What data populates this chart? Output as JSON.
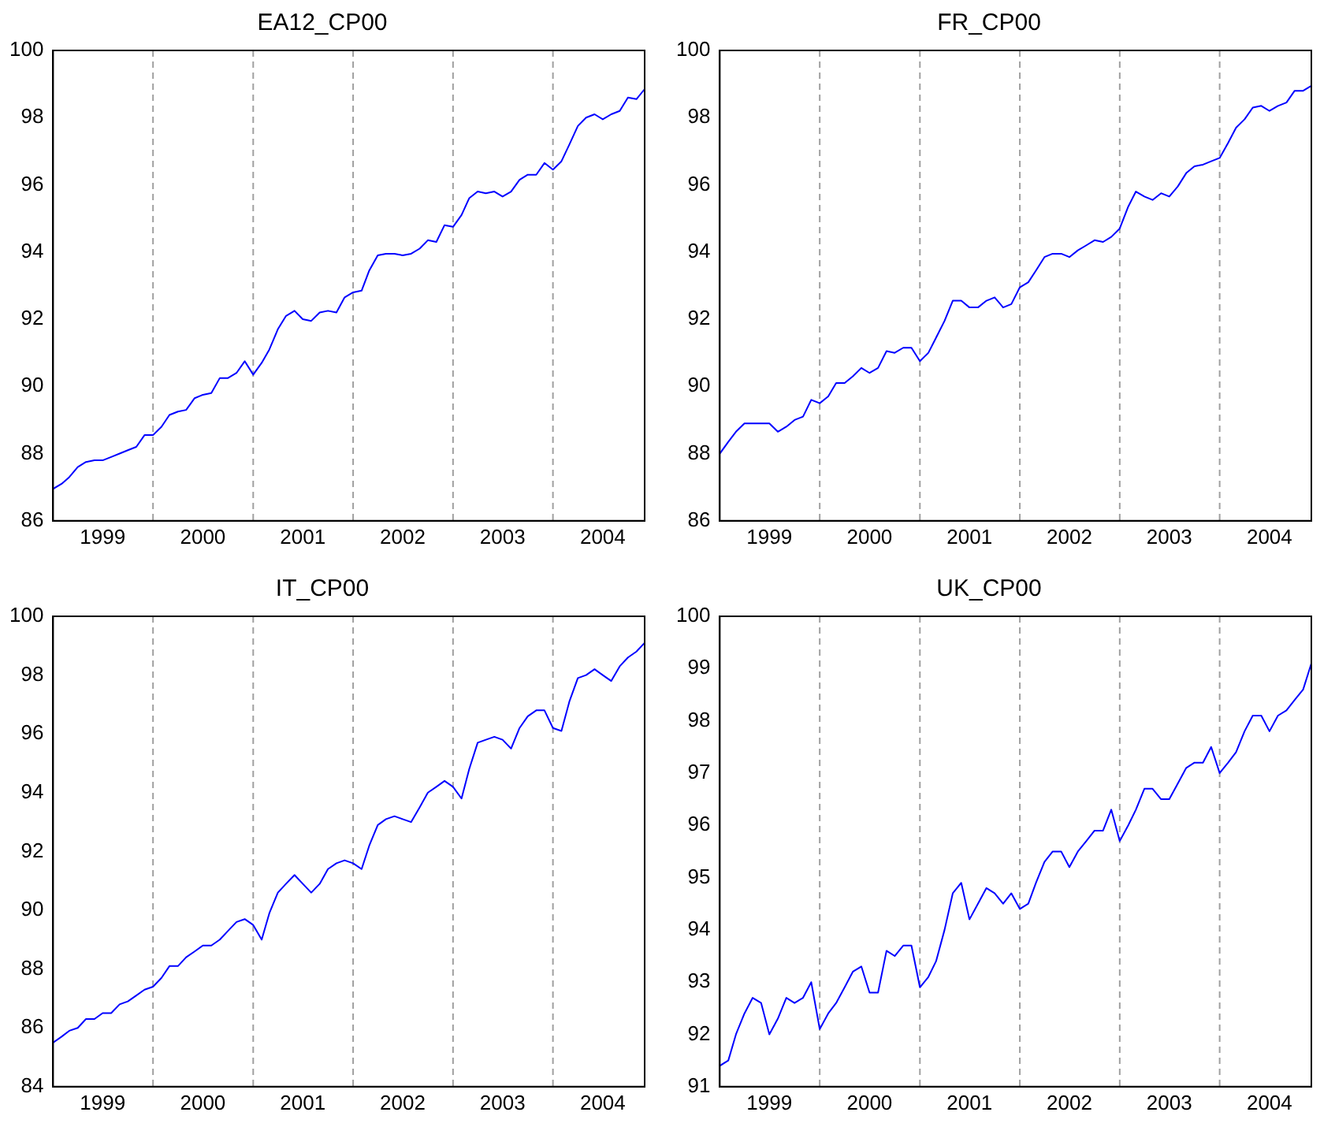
{
  "chart_data": [
    {
      "type": "line",
      "title": "EA12_CP00",
      "x": [
        "1999-01",
        "1999-02",
        "1999-03",
        "1999-04",
        "1999-05",
        "1999-06",
        "1999-07",
        "1999-08",
        "1999-09",
        "1999-10",
        "1999-11",
        "1999-12",
        "2000-01",
        "2000-02",
        "2000-03",
        "2000-04",
        "2000-05",
        "2000-06",
        "2000-07",
        "2000-08",
        "2000-09",
        "2000-10",
        "2000-11",
        "2000-12",
        "2001-01",
        "2001-02",
        "2001-03",
        "2001-04",
        "2001-05",
        "2001-06",
        "2001-07",
        "2001-08",
        "2001-09",
        "2001-10",
        "2001-11",
        "2001-12",
        "2002-01",
        "2002-02",
        "2002-03",
        "2002-04",
        "2002-05",
        "2002-06",
        "2002-07",
        "2002-08",
        "2002-09",
        "2002-10",
        "2002-11",
        "2002-12",
        "2003-01",
        "2003-02",
        "2003-03",
        "2003-04",
        "2003-05",
        "2003-06",
        "2003-07",
        "2003-08",
        "2003-09",
        "2003-10",
        "2003-11",
        "2003-12",
        "2004-01",
        "2004-02",
        "2004-03",
        "2004-04",
        "2004-05",
        "2004-06",
        "2004-07",
        "2004-08",
        "2004-09",
        "2004-10",
        "2004-11",
        "2004-12"
      ],
      "series": [
        {
          "color": "#0000ff",
          "values": [
            86.95,
            87.1,
            87.3,
            87.6,
            87.75,
            87.8,
            87.8,
            87.9,
            88.0,
            88.1,
            88.2,
            88.55,
            88.55,
            88.8,
            89.15,
            89.25,
            89.3,
            89.65,
            89.75,
            89.8,
            90.25,
            90.25,
            90.4,
            90.75,
            90.35,
            90.7,
            91.1,
            91.7,
            92.1,
            92.25,
            92.0,
            91.95,
            92.2,
            92.25,
            92.2,
            92.65,
            92.8,
            92.85,
            93.45,
            93.9,
            93.95,
            93.95,
            93.9,
            93.95,
            94.1,
            94.35,
            94.3,
            94.8,
            94.75,
            95.1,
            95.6,
            95.8,
            95.75,
            95.8,
            95.65,
            95.8,
            96.15,
            96.3,
            96.3,
            96.65,
            96.45,
            96.7,
            97.2,
            97.75,
            98.0,
            98.1,
            97.95,
            98.1,
            98.2,
            98.6,
            98.55,
            98.85
          ]
        }
      ],
      "xlim": [
        "1999-01",
        "2004-12"
      ],
      "xticks": [
        {
          "value": "1999-07",
          "label": "1999"
        },
        {
          "value": "2000-07",
          "label": "2000"
        },
        {
          "value": "2001-07",
          "label": "2001"
        },
        {
          "value": "2002-07",
          "label": "2002"
        },
        {
          "value": "2003-07",
          "label": "2003"
        },
        {
          "value": "2004-07",
          "label": "2004"
        }
      ],
      "ylim": [
        86,
        100
      ],
      "yticks": [
        86,
        88,
        90,
        92,
        94,
        96,
        98,
        100
      ],
      "grid": false,
      "legend": false,
      "line_style": "solid",
      "marker": "none",
      "ref_lines": [
        {
          "axis": "x",
          "value": "2000-01",
          "color": "#a0a0a0",
          "line_style": "dashed"
        },
        {
          "axis": "x",
          "value": "2001-01",
          "color": "#a0a0a0",
          "line_style": "dashed"
        },
        {
          "axis": "x",
          "value": "2002-01",
          "color": "#a0a0a0",
          "line_style": "dashed"
        },
        {
          "axis": "x",
          "value": "2003-01",
          "color": "#a0a0a0",
          "line_style": "dashed"
        },
        {
          "axis": "x",
          "value": "2004-01",
          "color": "#a0a0a0",
          "line_style": "dashed"
        }
      ]
    },
    {
      "type": "line",
      "title": "FR_CP00",
      "x": [
        "1999-01",
        "1999-02",
        "1999-03",
        "1999-04",
        "1999-05",
        "1999-06",
        "1999-07",
        "1999-08",
        "1999-09",
        "1999-10",
        "1999-11",
        "1999-12",
        "2000-01",
        "2000-02",
        "2000-03",
        "2000-04",
        "2000-05",
        "2000-06",
        "2000-07",
        "2000-08",
        "2000-09",
        "2000-10",
        "2000-11",
        "2000-12",
        "2001-01",
        "2001-02",
        "2001-03",
        "2001-04",
        "2001-05",
        "2001-06",
        "2001-07",
        "2001-08",
        "2001-09",
        "2001-10",
        "2001-11",
        "2001-12",
        "2002-01",
        "2002-02",
        "2002-03",
        "2002-04",
        "2002-05",
        "2002-06",
        "2002-07",
        "2002-08",
        "2002-09",
        "2002-10",
        "2002-11",
        "2002-12",
        "2003-01",
        "2003-02",
        "2003-03",
        "2003-04",
        "2003-05",
        "2003-06",
        "2003-07",
        "2003-08",
        "2003-09",
        "2003-10",
        "2003-11",
        "2003-12",
        "2004-01",
        "2004-02",
        "2004-03",
        "2004-04",
        "2004-05",
        "2004-06",
        "2004-07",
        "2004-08",
        "2004-09",
        "2004-10",
        "2004-11",
        "2004-12"
      ],
      "series": [
        {
          "color": "#0000ff",
          "values": [
            88.0,
            88.35,
            88.65,
            88.9,
            88.9,
            88.9,
            88.9,
            88.65,
            88.8,
            89.0,
            89.1,
            89.6,
            89.5,
            89.7,
            90.1,
            90.1,
            90.3,
            90.55,
            90.4,
            90.55,
            91.05,
            91.0,
            91.15,
            91.15,
            90.75,
            91.0,
            91.45,
            91.95,
            92.55,
            92.55,
            92.35,
            92.35,
            92.55,
            92.65,
            92.35,
            92.45,
            92.95,
            93.1,
            93.45,
            93.85,
            93.95,
            93.95,
            93.85,
            94.05,
            94.2,
            94.35,
            94.3,
            94.45,
            94.7,
            95.35,
            95.8,
            95.65,
            95.55,
            95.75,
            95.65,
            95.95,
            96.35,
            96.55,
            96.6,
            96.7,
            96.8,
            97.25,
            97.7,
            97.95,
            98.3,
            98.35,
            98.2,
            98.35,
            98.45,
            98.8,
            98.8,
            98.95
          ]
        }
      ],
      "xlim": [
        "1999-01",
        "2004-12"
      ],
      "xticks": [
        {
          "value": "1999-07",
          "label": "1999"
        },
        {
          "value": "2000-07",
          "label": "2000"
        },
        {
          "value": "2001-07",
          "label": "2001"
        },
        {
          "value": "2002-07",
          "label": "2002"
        },
        {
          "value": "2003-07",
          "label": "2003"
        },
        {
          "value": "2004-07",
          "label": "2004"
        }
      ],
      "ylim": [
        86,
        100
      ],
      "yticks": [
        86,
        88,
        90,
        92,
        94,
        96,
        98,
        100
      ],
      "grid": false,
      "legend": false,
      "line_style": "solid",
      "marker": "none",
      "ref_lines": [
        {
          "axis": "x",
          "value": "2000-01",
          "color": "#a0a0a0",
          "line_style": "dashed"
        },
        {
          "axis": "x",
          "value": "2001-01",
          "color": "#a0a0a0",
          "line_style": "dashed"
        },
        {
          "axis": "x",
          "value": "2002-01",
          "color": "#a0a0a0",
          "line_style": "dashed"
        },
        {
          "axis": "x",
          "value": "2003-01",
          "color": "#a0a0a0",
          "line_style": "dashed"
        },
        {
          "axis": "x",
          "value": "2004-01",
          "color": "#a0a0a0",
          "line_style": "dashed"
        }
      ]
    },
    {
      "type": "line",
      "title": "IT_CP00",
      "x": [
        "1999-01",
        "1999-02",
        "1999-03",
        "1999-04",
        "1999-05",
        "1999-06",
        "1999-07",
        "1999-08",
        "1999-09",
        "1999-10",
        "1999-11",
        "1999-12",
        "2000-01",
        "2000-02",
        "2000-03",
        "2000-04",
        "2000-05",
        "2000-06",
        "2000-07",
        "2000-08",
        "2000-09",
        "2000-10",
        "2000-11",
        "2000-12",
        "2001-01",
        "2001-02",
        "2001-03",
        "2001-04",
        "2001-05",
        "2001-06",
        "2001-07",
        "2001-08",
        "2001-09",
        "2001-10",
        "2001-11",
        "2001-12",
        "2002-01",
        "2002-02",
        "2002-03",
        "2002-04",
        "2002-05",
        "2002-06",
        "2002-07",
        "2002-08",
        "2002-09",
        "2002-10",
        "2002-11",
        "2002-12",
        "2003-01",
        "2003-02",
        "2003-03",
        "2003-04",
        "2003-05",
        "2003-06",
        "2003-07",
        "2003-08",
        "2003-09",
        "2003-10",
        "2003-11",
        "2003-12",
        "2004-01",
        "2004-02",
        "2004-03",
        "2004-04",
        "2004-05",
        "2004-06",
        "2004-07",
        "2004-08",
        "2004-09",
        "2004-10",
        "2004-11",
        "2004-12"
      ],
      "series": [
        {
          "color": "#0000ff",
          "values": [
            85.5,
            85.7,
            85.9,
            86.0,
            86.3,
            86.3,
            86.5,
            86.5,
            86.8,
            86.9,
            87.1,
            87.3,
            87.4,
            87.7,
            88.1,
            88.1,
            88.4,
            88.6,
            88.8,
            88.8,
            89.0,
            89.3,
            89.6,
            89.7,
            89.5,
            89.0,
            89.9,
            90.6,
            90.9,
            91.2,
            90.9,
            90.6,
            90.9,
            91.4,
            91.6,
            91.7,
            91.6,
            91.4,
            92.2,
            92.9,
            93.1,
            93.2,
            93.1,
            93.0,
            93.5,
            94.0,
            94.2,
            94.4,
            94.2,
            93.8,
            94.8,
            95.7,
            95.8,
            95.9,
            95.8,
            95.5,
            96.2,
            96.6,
            96.8,
            96.8,
            96.2,
            96.1,
            97.1,
            97.9,
            98.0,
            98.2,
            98.0,
            97.8,
            98.3,
            98.6,
            98.8,
            99.1
          ]
        }
      ],
      "xlim": [
        "1999-01",
        "2004-12"
      ],
      "xticks": [
        {
          "value": "1999-07",
          "label": "1999"
        },
        {
          "value": "2000-07",
          "label": "2000"
        },
        {
          "value": "2001-07",
          "label": "2001"
        },
        {
          "value": "2002-07",
          "label": "2002"
        },
        {
          "value": "2003-07",
          "label": "2003"
        },
        {
          "value": "2004-07",
          "label": "2004"
        }
      ],
      "ylim": [
        84,
        100
      ],
      "yticks": [
        84,
        86,
        88,
        90,
        92,
        94,
        96,
        98,
        100
      ],
      "grid": false,
      "legend": false,
      "line_style": "solid",
      "marker": "none",
      "ref_lines": [
        {
          "axis": "x",
          "value": "2000-01",
          "color": "#a0a0a0",
          "line_style": "dashed"
        },
        {
          "axis": "x",
          "value": "2001-01",
          "color": "#a0a0a0",
          "line_style": "dashed"
        },
        {
          "axis": "x",
          "value": "2002-01",
          "color": "#a0a0a0",
          "line_style": "dashed"
        },
        {
          "axis": "x",
          "value": "2003-01",
          "color": "#a0a0a0",
          "line_style": "dashed"
        },
        {
          "axis": "x",
          "value": "2004-01",
          "color": "#a0a0a0",
          "line_style": "dashed"
        }
      ]
    },
    {
      "type": "line",
      "title": "UK_CP00",
      "x": [
        "1999-01",
        "1999-02",
        "1999-03",
        "1999-04",
        "1999-05",
        "1999-06",
        "1999-07",
        "1999-08",
        "1999-09",
        "1999-10",
        "1999-11",
        "1999-12",
        "2000-01",
        "2000-02",
        "2000-03",
        "2000-04",
        "2000-05",
        "2000-06",
        "2000-07",
        "2000-08",
        "2000-09",
        "2000-10",
        "2000-11",
        "2000-12",
        "2001-01",
        "2001-02",
        "2001-03",
        "2001-04",
        "2001-05",
        "2001-06",
        "2001-07",
        "2001-08",
        "2001-09",
        "2001-10",
        "2001-11",
        "2001-12",
        "2002-01",
        "2002-02",
        "2002-03",
        "2002-04",
        "2002-05",
        "2002-06",
        "2002-07",
        "2002-08",
        "2002-09",
        "2002-10",
        "2002-11",
        "2002-12",
        "2003-01",
        "2003-02",
        "2003-03",
        "2003-04",
        "2003-05",
        "2003-06",
        "2003-07",
        "2003-08",
        "2003-09",
        "2003-10",
        "2003-11",
        "2003-12",
        "2004-01",
        "2004-02",
        "2004-03",
        "2004-04",
        "2004-05",
        "2004-06",
        "2004-07",
        "2004-08",
        "2004-09",
        "2004-10",
        "2004-11",
        "2004-12"
      ],
      "series": [
        {
          "color": "#0000ff",
          "values": [
            91.4,
            91.5,
            92.0,
            92.4,
            92.7,
            92.6,
            92.0,
            92.3,
            92.7,
            92.6,
            92.7,
            93.0,
            92.1,
            92.4,
            92.6,
            92.9,
            93.2,
            93.3,
            92.8,
            92.8,
            93.6,
            93.5,
            93.7,
            93.7,
            92.9,
            93.1,
            93.4,
            94.0,
            94.7,
            94.9,
            94.2,
            94.5,
            94.8,
            94.7,
            94.5,
            94.7,
            94.4,
            94.5,
            94.9,
            95.3,
            95.5,
            95.5,
            95.2,
            95.5,
            95.7,
            95.9,
            95.9,
            96.3,
            95.7,
            96.0,
            96.3,
            96.7,
            96.7,
            96.5,
            96.5,
            96.8,
            97.1,
            97.2,
            97.2,
            97.5,
            97.0,
            97.2,
            97.4,
            97.8,
            98.1,
            98.1,
            97.8,
            98.1,
            98.2,
            98.4,
            98.6,
            99.1
          ]
        }
      ],
      "xlim": [
        "1999-01",
        "2004-12"
      ],
      "xticks": [
        {
          "value": "1999-07",
          "label": "1999"
        },
        {
          "value": "2000-07",
          "label": "2000"
        },
        {
          "value": "2001-07",
          "label": "2001"
        },
        {
          "value": "2002-07",
          "label": "2002"
        },
        {
          "value": "2003-07",
          "label": "2003"
        },
        {
          "value": "2004-07",
          "label": "2004"
        }
      ],
      "ylim": [
        91,
        100
      ],
      "yticks": [
        91,
        92,
        93,
        94,
        95,
        96,
        97,
        98,
        99,
        100
      ],
      "grid": false,
      "legend": false,
      "line_style": "solid",
      "marker": "none",
      "ref_lines": [
        {
          "axis": "x",
          "value": "2000-01",
          "color": "#a0a0a0",
          "line_style": "dashed"
        },
        {
          "axis": "x",
          "value": "2001-01",
          "color": "#a0a0a0",
          "line_style": "dashed"
        },
        {
          "axis": "x",
          "value": "2002-01",
          "color": "#a0a0a0",
          "line_style": "dashed"
        },
        {
          "axis": "x",
          "value": "2003-01",
          "color": "#a0a0a0",
          "line_style": "dashed"
        },
        {
          "axis": "x",
          "value": "2004-01",
          "color": "#a0a0a0",
          "line_style": "dashed"
        }
      ]
    }
  ]
}
